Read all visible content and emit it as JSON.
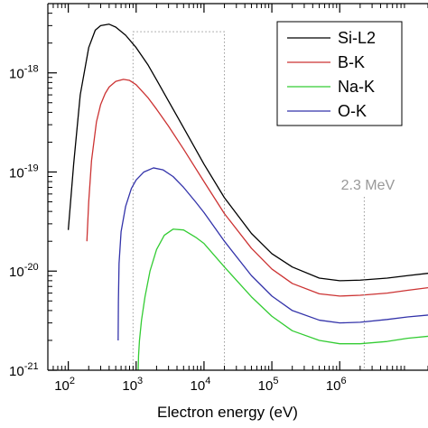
{
  "chart_data": {
    "type": "line",
    "title": "",
    "xlabel": "Electron energy (eV)",
    "ylabel": "",
    "xscale": "log",
    "yscale": "log",
    "xlim": [
      50,
      20000000
    ],
    "ylim": [
      1e-21,
      5e-18
    ],
    "grid": false,
    "legend_position": "top-right",
    "x_ticks": [
      {
        "base": "10",
        "exp": "2"
      },
      {
        "base": "10",
        "exp": "3"
      },
      {
        "base": "10",
        "exp": "4"
      },
      {
        "base": "10",
        "exp": "5"
      },
      {
        "base": "10",
        "exp": "6"
      }
    ],
    "y_ticks": [
      {
        "base": "10",
        "exp": "-21"
      },
      {
        "base": "10",
        "exp": "-20"
      },
      {
        "base": "10",
        "exp": "-19"
      },
      {
        "base": "10",
        "exp": "-18"
      }
    ],
    "series": [
      {
        "name": "Si-L2",
        "color": "#000000",
        "x": [
          100,
          120,
          150,
          200,
          250,
          300,
          400,
          500,
          700,
          1000,
          1500,
          2000,
          3000,
          5000,
          10000,
          20000,
          50000,
          100000,
          200000,
          500000,
          1000000,
          2000000,
          5000000,
          10000000,
          20000000
        ],
        "y": [
          2.6e-20,
          1.2e-19,
          6e-19,
          1.8e-18,
          2.7e-18,
          3e-18,
          3.1e-18,
          2.9e-18,
          2.4e-18,
          1.8e-18,
          1.2e-18,
          8.5e-19,
          5.2e-19,
          2.8e-19,
          1.2e-19,
          5.5e-20,
          2.4e-20,
          1.5e-20,
          1.1e-20,
          8.5e-21,
          8e-21,
          8.1e-21,
          8.5e-21,
          9e-21,
          9.5e-21
        ]
      },
      {
        "name": "B-K",
        "color": "#cc3333",
        "x": [
          188,
          200,
          220,
          260,
          300,
          350,
          400,
          500,
          650,
          800,
          1000,
          1500,
          2000,
          3000,
          5000,
          10000,
          20000,
          50000,
          100000,
          200000,
          500000,
          1000000,
          2000000,
          5000000,
          10000000,
          20000000
        ],
        "y": [
          2e-20,
          5e-20,
          1.3e-19,
          3.2e-19,
          4.8e-19,
          6.2e-19,
          7.2e-19,
          8.2e-19,
          8.6e-19,
          8.4e-19,
          7.6e-19,
          5.6e-19,
          4.3e-19,
          2.9e-19,
          1.7e-19,
          8e-20,
          3.8e-20,
          1.7e-20,
          1.05e-20,
          7.5e-21,
          5.9e-21,
          5.6e-21,
          5.7e-21,
          6e-21,
          6.4e-21,
          6.8e-21
        ]
      },
      {
        "name": "Na-K",
        "color": "#33cc33",
        "x": [
          1072,
          1085,
          1120,
          1200,
          1350,
          1600,
          2000,
          2600,
          3500,
          5000,
          7500,
          10000,
          20000,
          50000,
          100000,
          200000,
          500000,
          1000000,
          2000000,
          5000000,
          10000000,
          20000000
        ],
        "y": [
          1e-21,
          1.4e-21,
          2e-21,
          3.2e-21,
          5.5e-21,
          1e-20,
          1.65e-20,
          2.3e-20,
          2.65e-20,
          2.6e-20,
          2.2e-20,
          1.9e-20,
          1.1e-20,
          5.5e-21,
          3.5e-21,
          2.5e-21,
          2e-21,
          1.85e-21,
          1.85e-21,
          1.95e-21,
          2.1e-21,
          2.2e-21
        ]
      },
      {
        "name": "O-K",
        "color": "#3333aa",
        "x": [
          543,
          548,
          560,
          600,
          700,
          850,
          1000,
          1300,
          1800,
          2500,
          3500,
          5000,
          7500,
          10000,
          20000,
          50000,
          100000,
          200000,
          500000,
          1000000,
          2000000,
          5000000,
          10000000,
          20000000
        ],
        "y": [
          2e-21,
          5e-21,
          1.2e-20,
          2.5e-20,
          4.5e-20,
          6.8e-20,
          8.3e-20,
          1e-19,
          1.1e-19,
          1.05e-19,
          9e-20,
          7e-20,
          5e-20,
          3.9e-20,
          2e-20,
          9e-21,
          5.6e-21,
          4e-21,
          3.2e-21,
          3e-21,
          3.05e-21,
          3.25e-21,
          3.45e-21,
          3.6e-21
        ]
      }
    ],
    "annotations": [
      {
        "text": "2.3 MeV",
        "x": 2300000,
        "color": "#999999",
        "style": "dotted-vertical-line"
      },
      {
        "text": "",
        "x_range": [
          900,
          20000
        ],
        "y_range": [
          1e-21,
          2.6e-18
        ],
        "color": "#999999",
        "style": "dotted-rectangle"
      }
    ]
  }
}
